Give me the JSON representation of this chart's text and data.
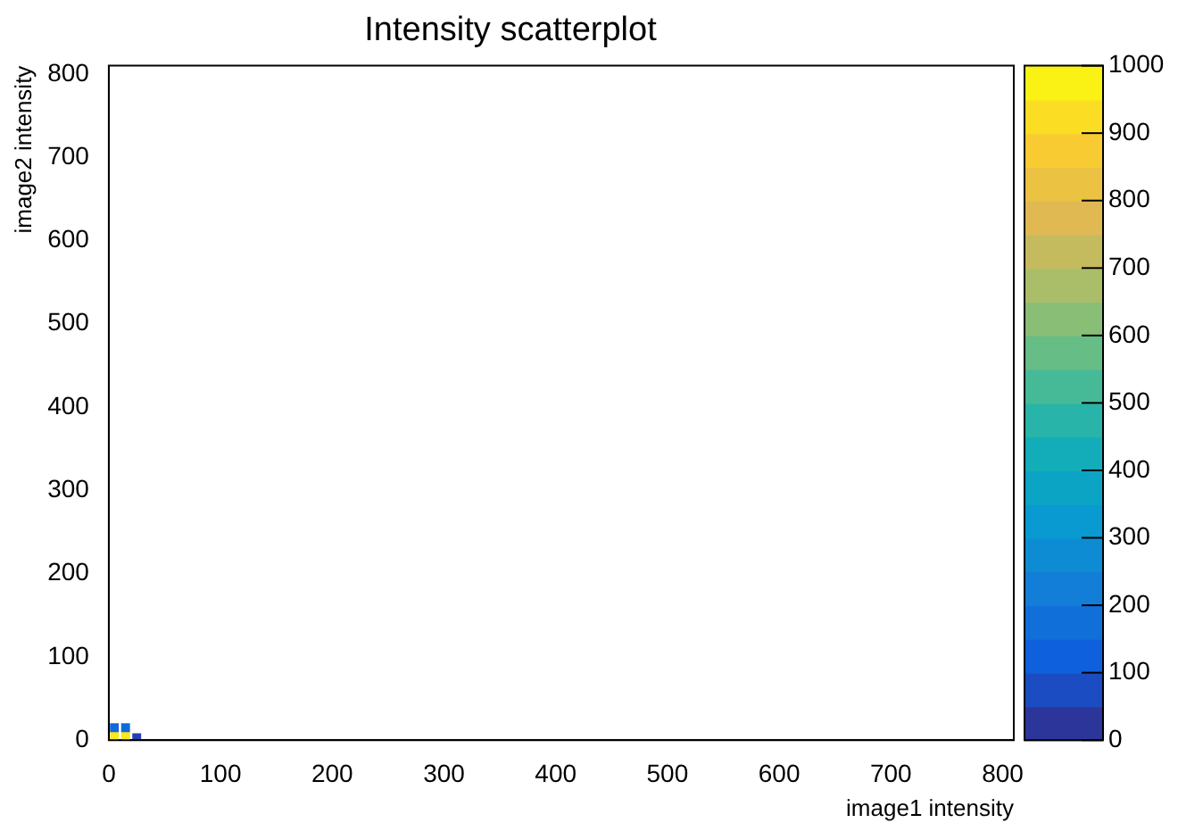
{
  "chart_data": {
    "type": "scatter",
    "title": "Intensity scatterplot",
    "xlabel": "image1 intensity",
    "ylabel": "image2 intensity",
    "x": [
      5,
      15,
      5,
      15,
      25
    ],
    "values": [
      5,
      5,
      15,
      15,
      3
    ],
    "cvalues": [
      950,
      950,
      150,
      150,
      50
    ],
    "marker": "square",
    "xlim": [
      0,
      810
    ],
    "ylim": [
      0,
      810
    ],
    "xticks": [
      0,
      100,
      200,
      300,
      400,
      500,
      600,
      700,
      800
    ],
    "yticks": [
      0,
      100,
      200,
      300,
      400,
      500,
      600,
      700,
      800
    ],
    "clim": [
      0,
      1000
    ],
    "cticks": [
      0,
      100,
      200,
      300,
      400,
      500,
      600,
      700,
      800,
      900,
      1000
    ],
    "grid": false,
    "legend": false
  }
}
